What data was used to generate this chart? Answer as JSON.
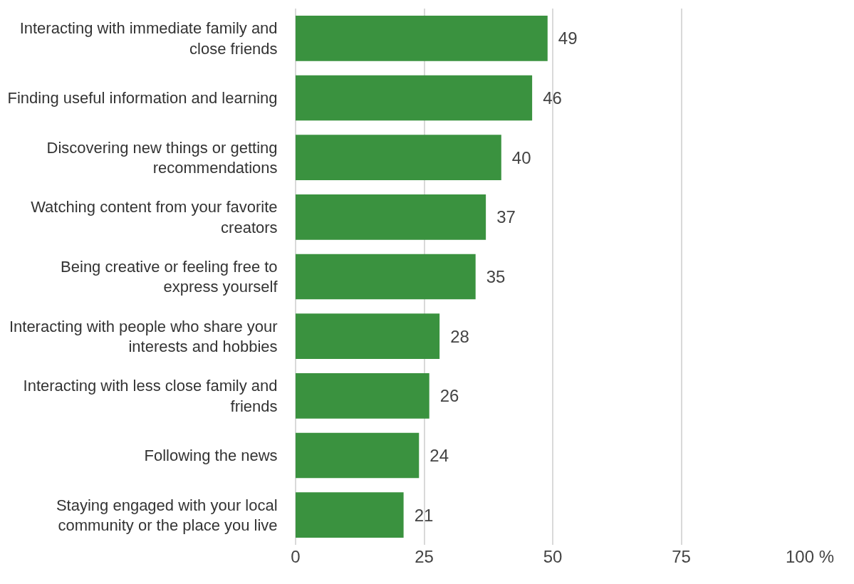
{
  "chart_data": {
    "type": "bar",
    "orientation": "horizontal",
    "categories": [
      "Interacting with immediate family and close friends",
      "Finding useful information and learning",
      "Discovering new things or getting recommendations",
      "Watching content from your favorite creators",
      "Being creative or feeling free to express yourself",
      "Interacting with people who share your interests and hobbies",
      "Interacting with less close family and friends",
      "Following the news",
      "Staying engaged with your local community or the place you live"
    ],
    "values": [
      49,
      46,
      40,
      37,
      35,
      28,
      26,
      24,
      21
    ],
    "color": "#3a923f",
    "xlim": [
      0,
      100
    ],
    "xticks": [
      0,
      25,
      50,
      75,
      {
        "value": 100,
        "label": "100 %"
      }
    ],
    "grid": "x",
    "data_labels": true
  }
}
